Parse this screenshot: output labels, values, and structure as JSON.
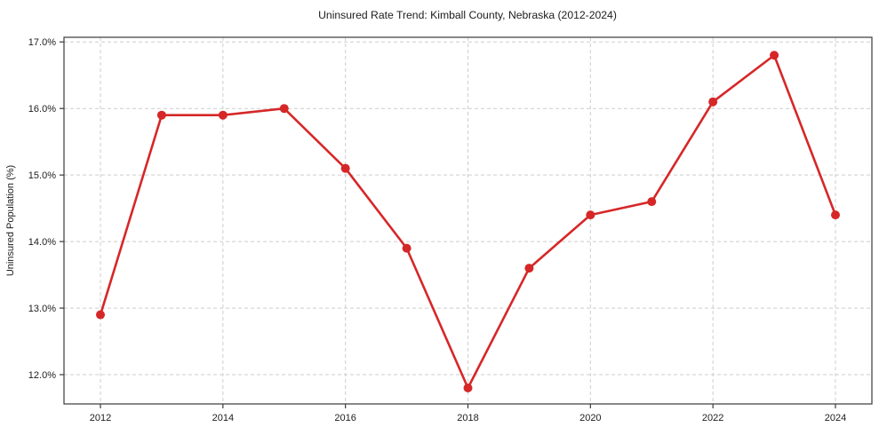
{
  "page": {
    "background_color": "#ffffff"
  },
  "chart_data": {
    "type": "line",
    "title": "Uninsured Rate Trend: Kimball County, Nebraska (2012-2024)",
    "xlabel": "",
    "ylabel": "Uninsured Population (%)",
    "x": [
      2012,
      2013,
      2014,
      2015,
      2016,
      2017,
      2018,
      2019,
      2020,
      2021,
      2022,
      2023,
      2024
    ],
    "values": [
      12.9,
      15.9,
      15.9,
      16.0,
      15.1,
      13.9,
      11.8,
      13.6,
      14.4,
      14.6,
      16.1,
      16.8,
      14.4
    ],
    "xlim": [
      2011.405,
      2024.595
    ],
    "ylim": [
      11.56,
      17.07
    ],
    "xticks": {
      "values": [
        2012,
        2014,
        2016,
        2018,
        2020,
        2022,
        2024
      ],
      "labels": [
        "2012",
        "2014",
        "2016",
        "2018",
        "2020",
        "2022",
        "2024"
      ]
    },
    "yticks": {
      "values": [
        12,
        13,
        14,
        15,
        16,
        17
      ],
      "labels": [
        "12.0%",
        "13.0%",
        "14.0%",
        "15.0%",
        "16.0%",
        "17.0%"
      ]
    },
    "grid": true,
    "grid_style": "dashed",
    "legend": "none",
    "line_color": "#d62728",
    "marker": "circle"
  },
  "style": {
    "background": "#ffffff",
    "line_color": "#d62728",
    "grid_color": "#cdcdcd",
    "frame_color": "#3a3a3a",
    "text_color": "#1c1c1c"
  }
}
